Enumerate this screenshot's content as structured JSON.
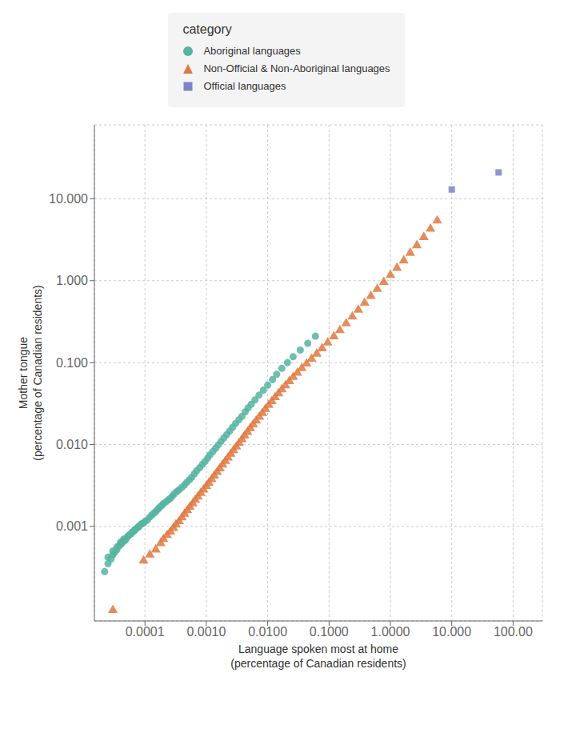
{
  "chart_data": {
    "type": "scatter",
    "title": "category",
    "xlabel": "Language spoken most at home\n(percentage of Canadian residents)",
    "ylabel": "Mother tongue\n(percentage of Canadian residents)",
    "log": true,
    "grid": true,
    "legend": "top",
    "xlim": [
      1.5e-05,
      300.0
    ],
    "ylim": [
      7e-05,
      80.0
    ],
    "xticks": [
      0.0001,
      {
        "value": 0.001,
        "label": "0.0010"
      },
      {
        "value": 0.01,
        "label": "0.0100"
      },
      {
        "value": 0.1,
        "label": "0.1000"
      },
      {
        "value": 1,
        "label": "1.0000"
      },
      {
        "value": 10,
        "label": "10.000"
      },
      {
        "value": 100,
        "label": "100.00"
      }
    ],
    "yticks": [
      0.001,
      {
        "value": 0.01,
        "label": "0.010"
      },
      {
        "value": 0.1,
        "label": "0.100"
      },
      {
        "value": 1,
        "label": "1.000"
      },
      {
        "value": 10,
        "label": "10.000"
      }
    ],
    "series": [
      {
        "name": "Aboriginal languages",
        "color": "#56b4a0",
        "marker": "circle",
        "points": [
          [
            2.2e-05,
            0.00028
          ],
          [
            2.5e-05,
            0.00035
          ],
          [
            2.5e-05,
            0.00042
          ],
          [
            2.8e-05,
            0.0004
          ],
          [
            3e-05,
            0.00045
          ],
          [
            3e-05,
            0.0005
          ],
          [
            3.2e-05,
            0.00048
          ],
          [
            3.5e-05,
            0.00052
          ],
          [
            3.5e-05,
            0.00056
          ],
          [
            3.8e-05,
            0.00058
          ],
          [
            4e-05,
            0.0006
          ],
          [
            4e-05,
            0.00064
          ],
          [
            4.2e-05,
            0.00062
          ],
          [
            4.5e-05,
            0.00066
          ],
          [
            4.5e-05,
            0.0007
          ],
          [
            4.8e-05,
            0.00068
          ],
          [
            5e-05,
            0.00072
          ],
          [
            5.2e-05,
            0.00075
          ],
          [
            5.5e-05,
            0.00078
          ],
          [
            5.8e-05,
            0.0008
          ],
          [
            6e-05,
            0.00082
          ],
          [
            6.2e-05,
            0.00085
          ],
          [
            6.5e-05,
            0.00087
          ],
          [
            6.8e-05,
            0.0009
          ],
          [
            7e-05,
            0.00092
          ],
          [
            7.5e-05,
            0.00096
          ],
          [
            7.8e-05,
            0.00098
          ],
          [
            8e-05,
            0.001
          ],
          [
            8.5e-05,
            0.00105
          ],
          [
            9e-05,
            0.00108
          ],
          [
            9.5e-05,
            0.0011
          ],
          [
            0.0001,
            0.00115
          ],
          [
            0.00011,
            0.0012
          ],
          [
            0.00012,
            0.0013
          ],
          [
            0.00013,
            0.00138
          ],
          [
            0.00014,
            0.00145
          ],
          [
            0.00015,
            0.00152
          ],
          [
            0.00016,
            0.0016
          ],
          [
            0.00017,
            0.00168
          ],
          [
            0.00018,
            0.00175
          ],
          [
            0.00019,
            0.00182
          ],
          [
            0.0002,
            0.0019
          ],
          [
            0.00022,
            0.002
          ],
          [
            0.00024,
            0.0021
          ],
          [
            0.00026,
            0.0022
          ],
          [
            0.00028,
            0.00235
          ],
          [
            0.0003,
            0.0025
          ],
          [
            0.00033,
            0.00265
          ],
          [
            0.00036,
            0.0028
          ],
          [
            0.0004,
            0.003
          ],
          [
            0.00044,
            0.0032
          ],
          [
            0.00048,
            0.00345
          ],
          [
            0.00053,
            0.0037
          ],
          [
            0.00058,
            0.004
          ],
          [
            0.00064,
            0.0044
          ],
          [
            0.0007,
            0.0048
          ],
          [
            0.00078,
            0.0052
          ],
          [
            0.00086,
            0.0057
          ],
          [
            0.00095,
            0.0062
          ],
          [
            0.00105,
            0.0068
          ],
          [
            0.00115,
            0.0075
          ],
          [
            0.00128,
            0.0082
          ],
          [
            0.00142,
            0.009
          ],
          [
            0.00157,
            0.0099
          ],
          [
            0.00174,
            0.0109
          ],
          [
            0.00193,
            0.012
          ],
          [
            0.00215,
            0.0132
          ],
          [
            0.0024,
            0.0146
          ],
          [
            0.00268,
            0.0162
          ],
          [
            0.003,
            0.018
          ],
          [
            0.0034,
            0.02
          ],
          [
            0.0038,
            0.022
          ],
          [
            0.0043,
            0.025
          ],
          [
            0.0048,
            0.028
          ],
          [
            0.0054,
            0.031
          ],
          [
            0.0062,
            0.035
          ],
          [
            0.0072,
            0.04
          ],
          [
            0.0085,
            0.046
          ],
          [
            0.01,
            0.053
          ],
          [
            0.012,
            0.062
          ],
          [
            0.014,
            0.072
          ],
          [
            0.017,
            0.085
          ],
          [
            0.021,
            0.1
          ],
          [
            0.026,
            0.118
          ],
          [
            0.034,
            0.142
          ],
          [
            0.045,
            0.172
          ],
          [
            0.06,
            0.21
          ]
        ]
      },
      {
        "name": "Non-Official & Non-Aboriginal languages",
        "color": "#e07840",
        "marker": "triangle",
        "points": [
          [
            3e-05,
            9.5e-05
          ],
          [
            9.5e-05,
            0.00038
          ],
          [
            0.00012,
            0.00045
          ],
          [
            0.00015,
            0.00052
          ],
          [
            0.00018,
            0.00062
          ],
          [
            0.0002,
            0.0007
          ],
          [
            0.00023,
            0.00078
          ],
          [
            0.00026,
            0.00086
          ],
          [
            0.00029,
            0.00095
          ],
          [
            0.00032,
            0.00105
          ],
          [
            0.00036,
            0.00115
          ],
          [
            0.0004,
            0.00128
          ],
          [
            0.00044,
            0.00142
          ],
          [
            0.00049,
            0.00157
          ],
          [
            0.00054,
            0.00173
          ],
          [
            0.0006,
            0.0019
          ],
          [
            0.00066,
            0.0021
          ],
          [
            0.00073,
            0.0023
          ],
          [
            0.00081,
            0.00255
          ],
          [
            0.0009,
            0.0028
          ],
          [
            0.001,
            0.0031
          ],
          [
            0.0011,
            0.0034
          ],
          [
            0.00122,
            0.00375
          ],
          [
            0.00135,
            0.00415
          ],
          [
            0.0015,
            0.0046
          ],
          [
            0.00166,
            0.0051
          ],
          [
            0.00184,
            0.00565
          ],
          [
            0.00204,
            0.00625
          ],
          [
            0.00226,
            0.0069
          ],
          [
            0.0025,
            0.00765
          ],
          [
            0.00278,
            0.0085
          ],
          [
            0.00308,
            0.0094
          ],
          [
            0.00342,
            0.0104
          ],
          [
            0.0038,
            0.0115
          ],
          [
            0.0042,
            0.0128
          ],
          [
            0.00468,
            0.0142
          ],
          [
            0.0052,
            0.0158
          ],
          [
            0.0058,
            0.0175
          ],
          [
            0.0065,
            0.0195
          ],
          [
            0.0073,
            0.0217
          ],
          [
            0.0082,
            0.0242
          ],
          [
            0.0092,
            0.027
          ],
          [
            0.0104,
            0.0302
          ],
          [
            0.0117,
            0.0337
          ],
          [
            0.0132,
            0.0376
          ],
          [
            0.015,
            0.042
          ],
          [
            0.017,
            0.047
          ],
          [
            0.0195,
            0.0525
          ],
          [
            0.0225,
            0.059
          ],
          [
            0.026,
            0.0665
          ],
          [
            0.0305,
            0.075
          ],
          [
            0.036,
            0.085
          ],
          [
            0.043,
            0.097
          ],
          [
            0.052,
            0.111
          ],
          [
            0.063,
            0.128
          ],
          [
            0.077,
            0.149
          ],
          [
            0.095,
            0.175
          ],
          [
            0.12,
            0.208
          ],
          [
            0.15,
            0.248
          ],
          [
            0.19,
            0.3
          ],
          [
            0.24,
            0.363
          ],
          [
            0.3,
            0.44
          ],
          [
            0.38,
            0.535
          ],
          [
            0.48,
            0.65
          ],
          [
            0.61,
            0.79
          ],
          [
            0.78,
            0.96
          ],
          [
            1.0,
            1.17
          ],
          [
            1.28,
            1.43
          ],
          [
            1.65,
            1.76
          ],
          [
            2.1,
            2.18
          ],
          [
            2.7,
            2.7
          ],
          [
            3.5,
            3.4
          ],
          [
            4.5,
            4.3
          ],
          [
            5.8,
            5.4
          ]
        ]
      },
      {
        "name": "Official languages",
        "color": "#7b85c4",
        "marker": "square",
        "points": [
          [
            10.0,
            13.0
          ],
          [
            58.0,
            21.0
          ]
        ]
      }
    ]
  }
}
